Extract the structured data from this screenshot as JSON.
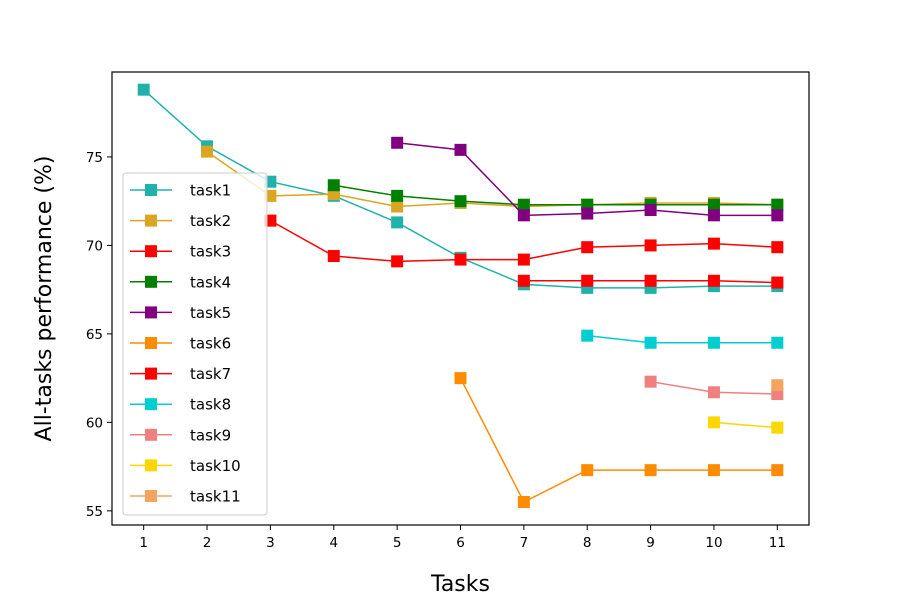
{
  "chart_data": {
    "type": "line",
    "title": "",
    "xlabel": "Tasks",
    "ylabel": "All-tasks performance (%)",
    "xlim": [
      0.5,
      11.5
    ],
    "ylim": [
      54.2,
      79.8
    ],
    "xticks": [
      1,
      2,
      3,
      4,
      5,
      6,
      7,
      8,
      9,
      10,
      11
    ],
    "yticks": [
      55,
      60,
      65,
      70,
      75
    ],
    "grid": false,
    "legend_position": "left",
    "marker": "square",
    "series": [
      {
        "name": "task1",
        "color": "#20b2aa",
        "x": [
          1,
          2,
          3,
          4,
          5,
          6,
          7,
          8,
          9,
          10,
          11
        ],
        "y": [
          78.8,
          75.6,
          73.6,
          72.8,
          71.3,
          69.3,
          67.8,
          67.6,
          67.6,
          67.7,
          67.7
        ]
      },
      {
        "name": "task2",
        "color": "#daa520",
        "x": [
          2,
          3,
          4,
          5,
          6,
          7,
          8,
          9,
          10,
          11
        ],
        "y": [
          75.3,
          72.8,
          72.9,
          72.2,
          72.4,
          72.2,
          72.3,
          72.4,
          72.4,
          72.3
        ]
      },
      {
        "name": "task3",
        "color": "#ff0000",
        "x": [
          3,
          4,
          5,
          6,
          7,
          8,
          9,
          10,
          11
        ],
        "y": [
          71.4,
          69.4,
          69.1,
          69.2,
          69.2,
          69.9,
          70.0,
          70.1,
          69.9
        ]
      },
      {
        "name": "task4",
        "color": "#008000",
        "x": [
          4,
          5,
          6,
          7,
          8,
          9,
          10,
          11
        ],
        "y": [
          73.4,
          72.8,
          72.5,
          72.3,
          72.3,
          72.3,
          72.3,
          72.3
        ]
      },
      {
        "name": "task5",
        "color": "#800080",
        "x": [
          5,
          6,
          7,
          8,
          9,
          10,
          11
        ],
        "y": [
          75.8,
          75.4,
          71.7,
          71.8,
          72.0,
          71.7,
          71.7
        ]
      },
      {
        "name": "task6",
        "color": "#ff8c00",
        "x": [
          6,
          7,
          8,
          9,
          10,
          11
        ],
        "y": [
          62.5,
          55.5,
          57.3,
          57.3,
          57.3,
          57.3
        ]
      },
      {
        "name": "task7",
        "color": "#ff0000",
        "x": [
          7,
          8,
          9,
          10,
          11
        ],
        "y": [
          68.0,
          68.0,
          68.0,
          68.0,
          67.9
        ]
      },
      {
        "name": "task8",
        "color": "#00ced1",
        "x": [
          8,
          9,
          10,
          11
        ],
        "y": [
          64.9,
          64.5,
          64.5,
          64.5
        ]
      },
      {
        "name": "task9",
        "color": "#f08080",
        "x": [
          9,
          10,
          11
        ],
        "y": [
          62.3,
          61.7,
          61.6
        ]
      },
      {
        "name": "task10",
        "color": "#ffd700",
        "x": [
          10,
          11
        ],
        "y": [
          60.0,
          59.7
        ]
      },
      {
        "name": "task11",
        "color": "#f4a460",
        "x": [
          11
        ],
        "y": [
          62.1
        ]
      }
    ]
  }
}
